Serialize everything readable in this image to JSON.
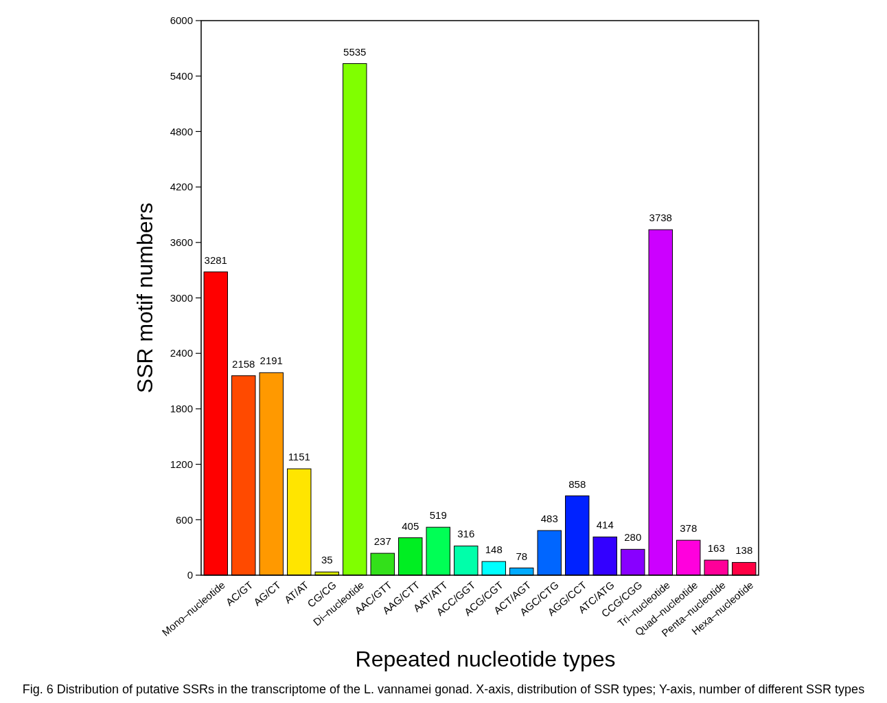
{
  "chart_data": {
    "type": "bar",
    "categories": [
      "Mono–nucleotide",
      "AC/GT",
      "AG/CT",
      "AT/AT",
      "CG/CG",
      "Di–nucleotide",
      "AAC/GTT",
      "AAG/CTT",
      "AAT/ATT",
      "ACC/GGT",
      "ACG/CGT",
      "ACT/AGT",
      "AGC/CTG",
      "AGG/CCT",
      "ATC/ATG",
      "CCG/CGG",
      "Tri–nucleotide",
      "Quad–nucleotide",
      "Penta–nucleotide",
      "Hexa–nucleotide"
    ],
    "values": [
      3281,
      2158,
      2191,
      1151,
      35,
      5535,
      237,
      405,
      519,
      316,
      148,
      78,
      483,
      858,
      414,
      280,
      3738,
      378,
      163,
      138
    ],
    "colors": [
      "#ff0000",
      "#ff4a00",
      "#ff9900",
      "#ffe500",
      "#d4e600",
      "#80ff00",
      "#33e01a",
      "#00ee22",
      "#00ff55",
      "#00ffaa",
      "#00ffff",
      "#00aaff",
      "#0066ff",
      "#0022ff",
      "#3300ff",
      "#8800ff",
      "#cc00ff",
      "#ff00dd",
      "#ff0099",
      "#ff0044"
    ],
    "ylim": [
      0,
      6000
    ],
    "yticks": [
      0,
      600,
      1200,
      1800,
      2400,
      3000,
      3600,
      4200,
      4800,
      5400,
      6000
    ],
    "xlabel": "Repeated nucleotide types",
    "ylabel": "SSR motif numbers",
    "data_labels": true,
    "grid": false,
    "annotations": [
      "Fig. 6 Distribution of putative SSRs in the transcriptome of the L. vannamei gonad. X-axis, distribution of SSR types; Y-axis, number of different SSR types"
    ]
  }
}
